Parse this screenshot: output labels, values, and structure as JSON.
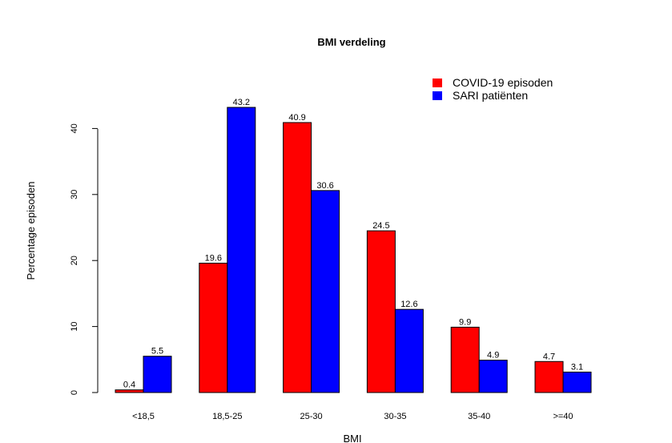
{
  "chart_data": {
    "type": "bar",
    "title": "BMI verdeling",
    "xlabel": "BMI",
    "ylabel": "Percentage episoden",
    "categories": [
      "<18,5",
      "18,5-25",
      "25-30",
      "30-35",
      "35-40",
      ">=40"
    ],
    "series": [
      {
        "name": "COVID-19 episoden",
        "color": "#ff0000",
        "values": [
          0.4,
          19.6,
          40.9,
          24.5,
          9.9,
          4.7
        ]
      },
      {
        "name": "SARI patiënten",
        "color": "#0000ff",
        "values": [
          5.5,
          43.2,
          30.6,
          12.6,
          4.9,
          3.1
        ]
      }
    ],
    "yticks": [
      0,
      10,
      20,
      30,
      40
    ],
    "ylim": [
      0,
      43.2
    ],
    "legend": "top-right",
    "grid": false
  }
}
